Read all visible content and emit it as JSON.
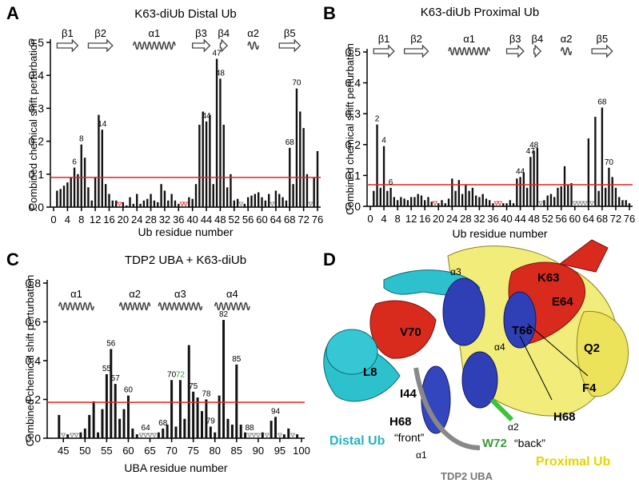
{
  "chart_data": [
    {
      "type": "bar",
      "label": "A",
      "title": "K63-diUb Distal Ub",
      "xlabel": "Ub residue number",
      "ylabel": "Combined chemical shift perturbation",
      "x": [
        1,
        2,
        3,
        4,
        5,
        6,
        7,
        8,
        9,
        10,
        11,
        12,
        13,
        14,
        15,
        16,
        17,
        18,
        19,
        20,
        21,
        22,
        23,
        24,
        25,
        26,
        27,
        28,
        29,
        30,
        31,
        32,
        33,
        34,
        35,
        36,
        37,
        38,
        39,
        40,
        41,
        42,
        43,
        44,
        45,
        46,
        47,
        48,
        49,
        50,
        51,
        52,
        53,
        54,
        55,
        56,
        57,
        58,
        59,
        60,
        61,
        62,
        63,
        64,
        65,
        66,
        67,
        68,
        69,
        70,
        71,
        72,
        73,
        74,
        75,
        76
      ],
      "values": [
        0.05,
        0.055,
        0.065,
        0.075,
        0.09,
        0.12,
        0.1,
        0.19,
        0.15,
        0.06,
        0.02,
        0.09,
        0.28,
        0.235,
        0.07,
        0.04,
        0.02,
        0.02,
        null,
        0.015,
        0.005,
        0.03,
        0.01,
        0.04,
        0.01,
        0.02,
        0.025,
        0.04,
        0.02,
        0.015,
        0.07,
        0.05,
        0.02,
        0.04,
        0.02,
        0.01,
        null,
        null,
        0.03,
        0.025,
        0.07,
        0.25,
        0.29,
        0.26,
        0.28,
        0.07,
        0.45,
        0.39,
        0.25,
        0.06,
        0.1,
        0.02,
        0.025,
        null,
        0.01,
        0.03,
        0.035,
        0.04,
        0.045,
        0.03,
        0.02,
        0.04,
        null,
        0.05,
        0.04,
        0.03,
        0.02,
        0.18,
        0.07,
        0.36,
        0.29,
        0.24,
        0.1,
        null,
        0.09,
        0.17
      ],
      "labeled": [
        6,
        8,
        14,
        44,
        47,
        48,
        68,
        70
      ],
      "threshold": 0.09,
      "color": "#111111",
      "threshold_color": "#e02525",
      "unassigned_color": "#777777",
      "prolines": [
        19,
        37,
        38
      ],
      "proline_color": "#e02525",
      "xlim": [
        0,
        76
      ],
      "xticks": [
        0,
        4,
        8,
        12,
        16,
        20,
        24,
        28,
        32,
        36,
        40,
        44,
        48,
        52,
        56,
        60,
        64,
        68,
        72,
        76
      ],
      "ylim": [
        0,
        0.5
      ],
      "yticks": [
        {
          "value": 0,
          "label": "0.0"
        },
        0.1,
        0.2,
        0.3,
        0.4,
        0.5
      ],
      "secondary_structure": [
        {
          "label": "β1",
          "start": 1,
          "end": 7,
          "kind": "strand"
        },
        {
          "label": "β2",
          "start": 10,
          "end": 17,
          "kind": "strand"
        },
        {
          "label": "α1",
          "start": 23,
          "end": 35,
          "kind": "helix"
        },
        {
          "label": "β3",
          "start": 40,
          "end": 45,
          "kind": "strand"
        },
        {
          "label": "β4",
          "start": 48,
          "end": 50,
          "kind": "strand"
        },
        {
          "label": "α2",
          "start": 56,
          "end": 59,
          "kind": "helix"
        },
        {
          "label": "β5",
          "start": 65,
          "end": 71,
          "kind": "strand"
        }
      ]
    },
    {
      "type": "bar",
      "label": "B",
      "title": "K63-diUb Proximal Ub",
      "xlabel": "Ub residue number",
      "ylabel": "Combined chemical shift perturbation",
      "x": [
        1,
        2,
        3,
        4,
        5,
        6,
        7,
        8,
        9,
        10,
        11,
        12,
        13,
        14,
        15,
        16,
        17,
        18,
        19,
        20,
        21,
        22,
        23,
        24,
        25,
        26,
        27,
        28,
        29,
        30,
        31,
        32,
        33,
        34,
        35,
        36,
        37,
        38,
        39,
        40,
        41,
        42,
        43,
        44,
        45,
        46,
        47,
        48,
        49,
        50,
        51,
        52,
        53,
        54,
        55,
        56,
        57,
        58,
        59,
        60,
        61,
        62,
        63,
        64,
        65,
        66,
        67,
        68,
        69,
        70,
        71,
        72,
        73,
        74,
        75,
        76
      ],
      "values": [
        0.05,
        0.265,
        0.06,
        0.195,
        0.05,
        0.06,
        0.03,
        0.02,
        0.03,
        0.025,
        0.02,
        0.03,
        0.03,
        0.04,
        0.035,
        0.02,
        0.03,
        0.015,
        null,
        0.01,
        0.02,
        0.01,
        0.025,
        0.09,
        0.05,
        0.085,
        0.04,
        0.07,
        0.05,
        0.06,
        0.035,
        0.03,
        0.04,
        0.025,
        0.02,
        0.01,
        null,
        null,
        0.01,
        0.01,
        0.02,
        0.01,
        0.09,
        0.095,
        0.11,
        0.06,
        0.16,
        0.18,
        0.19,
        null,
        0.02,
        0.035,
        0.04,
        0.03,
        0.06,
        0.065,
        0.13,
        0.07,
        0.075,
        null,
        null,
        null,
        null,
        0.22,
        null,
        0.29,
        0.05,
        0.32,
        0.06,
        0.125,
        0.095,
        0.06,
        0.03,
        0.02,
        0.02,
        0.01
      ],
      "labeled": [
        2,
        4,
        6,
        44,
        47,
        48,
        68,
        70
      ],
      "threshold": 0.07,
      "color": "#111111",
      "threshold_color": "#e02525",
      "unassigned_color": "#777777",
      "prolines": [
        19,
        37,
        38
      ],
      "proline_color": "#e02525",
      "xlim": [
        0,
        76
      ],
      "xticks": [
        0,
        4,
        8,
        12,
        16,
        20,
        24,
        28,
        32,
        36,
        40,
        44,
        48,
        52,
        56,
        60,
        64,
        68,
        72,
        76
      ],
      "ylim": [
        0,
        0.5
      ],
      "yticks": [
        {
          "value": 0,
          "label": "0.0"
        },
        0.1,
        0.2,
        0.3,
        0.4,
        0.5
      ],
      "secondary_structure": [
        {
          "label": "β1",
          "start": 1,
          "end": 7,
          "kind": "strand"
        },
        {
          "label": "β2",
          "start": 10,
          "end": 17,
          "kind": "strand"
        },
        {
          "label": "α1",
          "start": 23,
          "end": 35,
          "kind": "helix"
        },
        {
          "label": "β3",
          "start": 40,
          "end": 45,
          "kind": "strand"
        },
        {
          "label": "β4",
          "start": 48,
          "end": 50,
          "kind": "strand"
        },
        {
          "label": "α2",
          "start": 56,
          "end": 59,
          "kind": "helix"
        },
        {
          "label": "β5",
          "start": 65,
          "end": 71,
          "kind": "strand"
        }
      ]
    },
    {
      "type": "bar",
      "label": "C",
      "title": "TDP2 UBA + K63-diUb",
      "xlabel": "UBA residue number",
      "ylabel": "Combined chemical shift perturbation",
      "x": [
        44,
        45,
        46,
        47,
        48,
        49,
        50,
        51,
        52,
        53,
        54,
        55,
        56,
        57,
        58,
        59,
        60,
        61,
        62,
        63,
        64,
        65,
        66,
        67,
        68,
        69,
        70,
        71,
        72,
        73,
        74,
        75,
        76,
        77,
        78,
        79,
        80,
        81,
        82,
        83,
        84,
        85,
        86,
        87,
        88,
        89,
        90,
        91,
        92,
        93,
        94,
        95,
        96,
        97,
        98,
        99
      ],
      "values": [
        0.12,
        null,
        0.02,
        null,
        null,
        0.03,
        0.05,
        0.12,
        0.19,
        0.03,
        0.15,
        0.33,
        0.46,
        0.28,
        0.1,
        0.15,
        0.22,
        0.05,
        0.02,
        null,
        null,
        null,
        null,
        0.03,
        0.05,
        0.07,
        0.3,
        0.06,
        0.3,
        0.1,
        0.48,
        0.24,
        0.21,
        0.14,
        0.2,
        0.06,
        0.03,
        0.22,
        0.61,
        0.1,
        0.07,
        0.38,
        0.07,
        0.03,
        null,
        null,
        null,
        0.03,
        null,
        0.09,
        0.11,
        null,
        0.02,
        0.05,
        null,
        0.02
      ],
      "labeled": [
        55,
        56,
        57,
        60,
        64,
        68,
        70,
        72,
        75,
        78,
        79,
        82,
        85,
        88,
        94
      ],
      "highlight": 72,
      "highlight_color": "#3a9a3a",
      "threshold": 0.185,
      "color": "#111111",
      "threshold_color": "#e02525",
      "unassigned_color": "#777777",
      "prolines": [],
      "proline_color": "#e02525",
      "xlim": [
        42,
        100
      ],
      "xticks": [
        45,
        50,
        55,
        60,
        65,
        70,
        75,
        80,
        85,
        90,
        95,
        100
      ],
      "ylim": [
        0,
        0.8
      ],
      "yticks": [
        {
          "value": 0,
          "label": "0.0"
        },
        0.2,
        0.4,
        0.6,
        0.8
      ],
      "secondary_structure": [
        {
          "label": "α1",
          "start": 44,
          "end": 52,
          "kind": "helix"
        },
        {
          "label": "α2",
          "start": 58,
          "end": 65,
          "kind": "helix"
        },
        {
          "label": "α3",
          "start": 67,
          "end": 77,
          "kind": "helix"
        },
        {
          "label": "α4",
          "start": 80,
          "end": 88,
          "kind": "helix"
        }
      ]
    }
  ],
  "panel_d": {
    "label": "D",
    "labels": [
      "K63",
      "E64",
      "V70",
      "T66",
      "Q2",
      "L8",
      "I44",
      "H68",
      "F4",
      "H68",
      "Distal Ub",
      "“front”",
      "W72",
      "“back”",
      "Proximal Ub",
      "TDP2 UBA",
      "α1",
      "α2",
      "α3",
      "α4"
    ]
  }
}
